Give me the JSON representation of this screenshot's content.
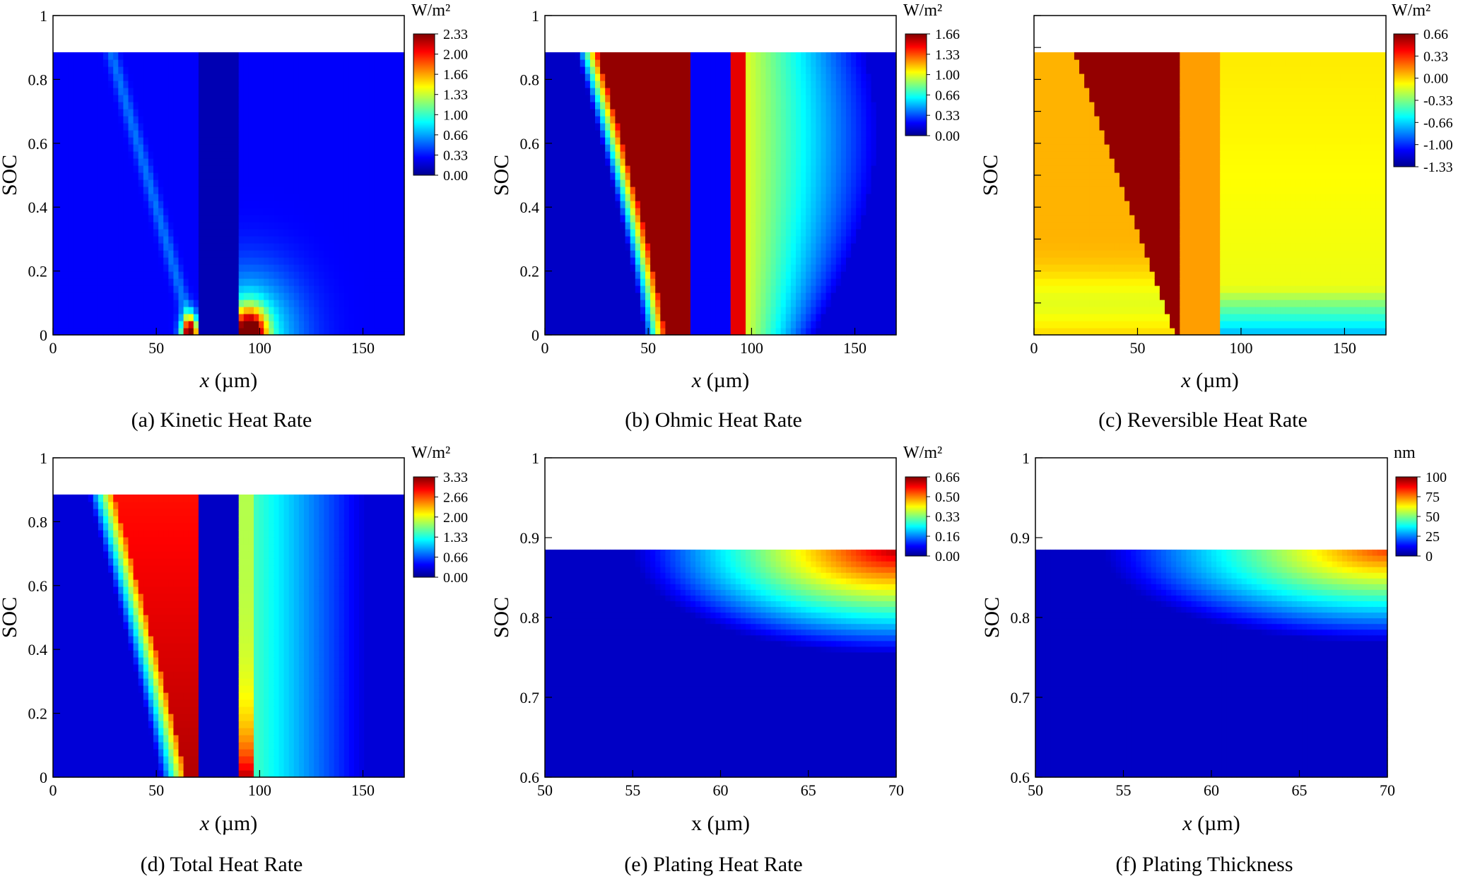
{
  "figure": {
    "panels": [
      {
        "id": "a",
        "caption": "(a) Kinetic Heat Rate",
        "xlabel_italic": "x",
        "xlabel_rest": " (µm)",
        "ylabel": "SOC",
        "x_ticks": [
          "0",
          "50",
          "100",
          "150"
        ],
        "y_ticks": [
          "0",
          "0.2",
          "0.4",
          "0.6",
          "0.8",
          "1"
        ],
        "colorbar": {
          "unit": "W/m²",
          "ticks": [
            "2.33",
            "2.00",
            "1.66",
            "1.33",
            "1.00",
            "0.66",
            "0.33",
            "0.00"
          ],
          "colormap": "jet"
        }
      },
      {
        "id": "b",
        "caption": "(b) Ohmic Heat Rate",
        "xlabel_italic": "x",
        "xlabel_rest": " (µm)",
        "ylabel": "SOC",
        "x_ticks": [
          "0",
          "50",
          "100",
          "150"
        ],
        "y_ticks": [
          "0",
          "0.2",
          "0.4",
          "0.6",
          "0.8",
          "1"
        ],
        "colorbar": {
          "unit": "W/m²",
          "ticks": [
            "1.66",
            "1.33",
            "1.00",
            "0.66",
            "0.33",
            "0.00"
          ],
          "colormap": "jet"
        }
      },
      {
        "id": "c",
        "caption": "(c) Reversible Heat Rate",
        "xlabel_italic": "x",
        "xlabel_rest": " (µm)",
        "ylabel": "SOC",
        "x_ticks": [
          "0",
          "50",
          "100",
          "150"
        ],
        "y_ticks": [],
        "colorbar": {
          "unit": "W/m²",
          "ticks": [
            "0.66",
            "0.33",
            "0.00",
            "-0.33",
            "-0.66",
            "-1.00",
            "-1.33"
          ],
          "colormap": "jet"
        }
      },
      {
        "id": "d",
        "caption": "(d) Total Heat Rate",
        "xlabel_italic": "x",
        "xlabel_rest": " (µm)",
        "ylabel": "SOC",
        "x_ticks": [
          "0",
          "50",
          "100",
          "150"
        ],
        "y_ticks": [
          "0",
          "0.2",
          "0.4",
          "0.6",
          "0.8",
          "1"
        ],
        "colorbar": {
          "unit": "W/m²",
          "ticks": [
            "3.33",
            "2.66",
            "2.00",
            "1.33",
            "0.66",
            "0.00"
          ],
          "colormap": "jet"
        }
      },
      {
        "id": "e",
        "caption": "(e) Plating Heat Rate",
        "xlabel_italic": "",
        "xlabel_rest": "x (µm)",
        "ylabel": "SOC",
        "x_ticks": [
          "50",
          "55",
          "60",
          "65",
          "70"
        ],
        "y_ticks": [
          "0.6",
          "0.7",
          "0.8",
          "0.9",
          "1"
        ],
        "colorbar": {
          "unit": "W/m²",
          "ticks": [
            "0.66",
            "0.50",
            "0.33",
            "0.16",
            "0.00"
          ],
          "colormap": "jet"
        }
      },
      {
        "id": "f",
        "caption": "(f) Plating Thickness",
        "xlabel_italic": "x",
        "xlabel_rest": " (µm)",
        "ylabel": "SOC",
        "x_ticks": [
          "50",
          "55",
          "60",
          "65",
          "70"
        ],
        "y_ticks": [
          "0.6",
          "0.7",
          "0.8",
          "0.9",
          "1"
        ],
        "colorbar": {
          "unit": "nm",
          "ticks": [
            "100",
            "75",
            "50",
            "25",
            "0"
          ],
          "colormap": "jet"
        }
      }
    ]
  },
  "chart_data": [
    {
      "type": "heatmap",
      "title": "(a) Kinetic Heat Rate",
      "xlabel": "x (µm)",
      "ylabel": "SOC",
      "xlim": [
        0,
        170
      ],
      "ylim": [
        0,
        1
      ],
      "data_ymax": 0.885,
      "colorbar": {
        "label": "W/m²",
        "range": [
          0,
          2.33
        ]
      },
      "description_points": [
        {
          "x": 65,
          "y": 0.03,
          "value": 2.33
        },
        {
          "x": 95,
          "y": 0.03,
          "value": 2.1
        },
        {
          "x": 100,
          "y": 0.2,
          "value": 0.8
        },
        {
          "x": 30,
          "y": 0.5,
          "value": 0.4
        },
        {
          "x": 140,
          "y": 0.6,
          "value": 0.25
        }
      ]
    },
    {
      "type": "heatmap",
      "title": "(b) Ohmic Heat Rate",
      "xlabel": "x (µm)",
      "ylabel": "SOC",
      "xlim": [
        0,
        170
      ],
      "ylim": [
        0,
        1
      ],
      "data_ymax": 0.885,
      "colorbar": {
        "label": "W/m²",
        "range": [
          0,
          1.66
        ]
      },
      "description_points": [
        {
          "x": 50,
          "y": 0.8,
          "value": 1.66
        },
        {
          "x": 60,
          "y": 0.2,
          "value": 1.66
        },
        {
          "x": 80,
          "y": 0.5,
          "value": 0.2
        },
        {
          "x": 95,
          "y": 0.2,
          "value": 1.6
        },
        {
          "x": 110,
          "y": 0.7,
          "value": 1.3
        },
        {
          "x": 130,
          "y": 0.6,
          "value": 0.9
        },
        {
          "x": 160,
          "y": 0.3,
          "value": 0.1
        }
      ]
    },
    {
      "type": "heatmap",
      "title": "(c) Reversible Heat Rate",
      "xlabel": "x (µm)",
      "ylabel": "SOC",
      "xlim": [
        0,
        170
      ],
      "ylim": [
        0,
        1
      ],
      "data_ymax": 0.885,
      "colorbar": {
        "label": "W/m²",
        "range": [
          -1.33,
          0.66
        ]
      },
      "description_points": [
        {
          "x": 40,
          "y": 0.6,
          "value": 0.66
        },
        {
          "x": 10,
          "y": 0.5,
          "value": 0.25
        },
        {
          "x": 80,
          "y": 0.5,
          "value": 0.2
        },
        {
          "x": 130,
          "y": 0.5,
          "value": 0.05
        },
        {
          "x": 100,
          "y": 0.03,
          "value": -0.9
        }
      ]
    },
    {
      "type": "heatmap",
      "title": "(d) Total Heat Rate",
      "xlabel": "x (µm)",
      "ylabel": "SOC",
      "xlim": [
        0,
        170
      ],
      "ylim": [
        0,
        1
      ],
      "data_ymax": 0.885,
      "colorbar": {
        "label": "W/m²",
        "range": [
          0,
          3.33
        ]
      },
      "description_points": [
        {
          "x": 65,
          "y": 0.05,
          "value": 3.33
        },
        {
          "x": 50,
          "y": 0.7,
          "value": 2.8
        },
        {
          "x": 95,
          "y": 0.1,
          "value": 2.8
        },
        {
          "x": 110,
          "y": 0.6,
          "value": 1.2
        },
        {
          "x": 80,
          "y": 0.5,
          "value": 0.2
        }
      ]
    },
    {
      "type": "heatmap",
      "title": "(e) Plating Heat Rate",
      "xlabel": "x (µm)",
      "ylabel": "SOC",
      "xlim": [
        50,
        70
      ],
      "ylim": [
        0.6,
        1
      ],
      "data_ymax": 0.885,
      "colorbar": {
        "label": "W/m²",
        "range": [
          0,
          0.66
        ]
      },
      "description_points": [
        {
          "x": 70,
          "y": 0.885,
          "value": 0.66
        },
        {
          "x": 65,
          "y": 0.86,
          "value": 0.4
        },
        {
          "x": 60,
          "y": 0.85,
          "value": 0.2
        },
        {
          "x": 55,
          "y": 0.75,
          "value": 0.0
        }
      ]
    },
    {
      "type": "heatmap",
      "title": "(f) Plating Thickness",
      "xlabel": "x (µm)",
      "ylabel": "SOC",
      "xlim": [
        50,
        70
      ],
      "ylim": [
        0.6,
        1
      ],
      "data_ymax": 0.885,
      "colorbar": {
        "label": "nm",
        "range": [
          0,
          100
        ]
      },
      "description_points": [
        {
          "x": 70,
          "y": 0.885,
          "value": 80
        },
        {
          "x": 65,
          "y": 0.86,
          "value": 50
        },
        {
          "x": 60,
          "y": 0.84,
          "value": 25
        },
        {
          "x": 55,
          "y": 0.75,
          "value": 0
        }
      ]
    }
  ]
}
